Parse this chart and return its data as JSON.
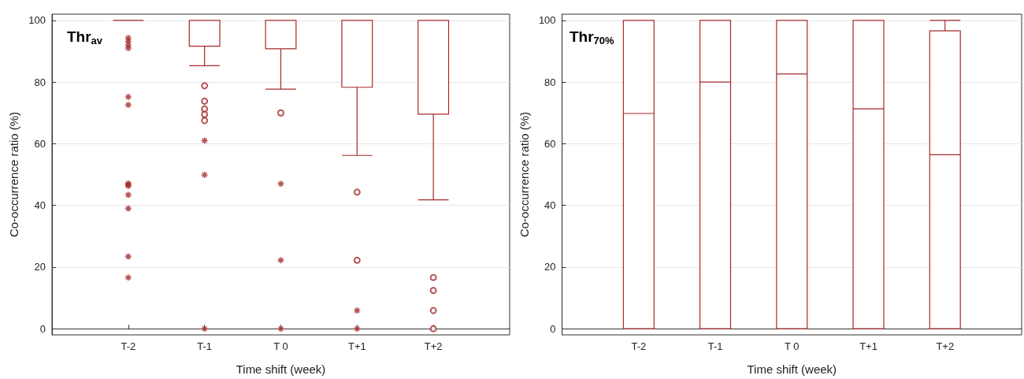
{
  "chart_data": [
    {
      "type": "box",
      "title": "Thr$_{av}$",
      "xlabel": "Time shift (week)",
      "ylabel": "Co-occurrence ratio (%)",
      "categories": [
        "T-2",
        "T-1",
        "T 0",
        "T+1",
        "T+2"
      ],
      "ylim": [
        -2,
        102
      ],
      "yticks": [
        0,
        20,
        40,
        60,
        80,
        100
      ],
      "grid": "y",
      "series": [
        {
          "color": "#a52a2a",
          "boxes": [
            {
              "low": 100,
              "q1": 100,
              "median": 100,
              "q3": 100,
              "high": 100
            },
            {
              "low": 85.3,
              "q1": 91.6,
              "median": 100,
              "q3": 100,
              "high": 100,
              "outliers": [
                78.8,
                73.8,
                71.3,
                69.5,
                67.5
              ]
            },
            {
              "low": 77.7,
              "q1": 90.8,
              "median": 100,
              "q3": 100,
              "high": 100,
              "outliers": [
                70.0
              ]
            },
            {
              "low": 56.2,
              "q1": 78.3,
              "median": 100,
              "q3": 100,
              "high": 100,
              "outliers": [
                44.3,
                22.2
              ]
            },
            {
              "low": 41.8,
              "q1": 69.6,
              "median": 100,
              "q3": 100,
              "high": 100,
              "outliers": [
                16.6,
                12.4,
                5.9,
                0
              ]
            }
          ]
        },
        {
          "type": "scatter",
          "color": "#a52a2a",
          "marker": "cross",
          "x": [
            "T-2",
            "T-2",
            "T-2",
            "T-2",
            "T-2",
            "T-2",
            "T-2",
            "T-2",
            "T-2",
            "T-2",
            "T-2",
            "T-2",
            "T-2",
            "T-1",
            "T-1",
            "T-1",
            "T 0",
            "T 0",
            "T 0",
            "T+1",
            "T+1"
          ],
          "values": [
            94.3,
            93.2,
            92.0,
            91.0,
            75.2,
            72.6,
            47.1,
            46.7,
            46.3,
            43.4,
            39.0,
            23.4,
            16.6,
            61.0,
            49.9,
            0,
            47.0,
            22.2,
            0,
            5.9,
            0
          ]
        }
      ]
    },
    {
      "type": "box",
      "title": "Thr$_{70%}$",
      "xlabel": "Time shift (week)",
      "ylabel": "Co-occurrence ratio (%)",
      "categories": [
        "T-2",
        "T-1",
        "T 0",
        "T+1",
        "T+2"
      ],
      "ylim": [
        -2,
        102
      ],
      "yticks": [
        0,
        20,
        40,
        60,
        80,
        100
      ],
      "grid": "y",
      "series": [
        {
          "color": "#a52a2a",
          "boxes": [
            {
              "low": 0,
              "q1": 0,
              "median": 69.8,
              "q3": 100,
              "high": 100
            },
            {
              "low": 0,
              "q1": 0,
              "median": 80.0,
              "q3": 100,
              "high": 100
            },
            {
              "low": 0,
              "q1": 0,
              "median": 82.6,
              "q3": 100,
              "high": 100
            },
            {
              "low": 0,
              "q1": 0,
              "median": 71.3,
              "q3": 100,
              "high": 100
            },
            {
              "low": 0,
              "q1": 0,
              "median": 56.4,
              "q3": 96.6,
              "high": 100
            }
          ]
        }
      ]
    }
  ]
}
